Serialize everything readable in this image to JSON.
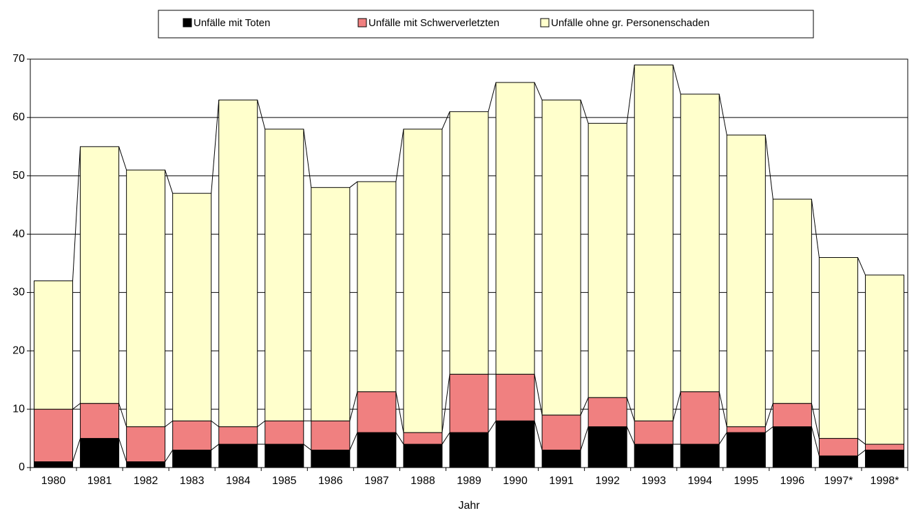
{
  "chart_data": {
    "type": "stacked-bar",
    "x_label": "Jahr",
    "categories": [
      "1980",
      "1981",
      "1982",
      "1983",
      "1984",
      "1985",
      "1986",
      "1987",
      "1988",
      "1989",
      "1990",
      "1991",
      "1992",
      "1993",
      "1994",
      "1995",
      "1996",
      "1997*",
      "1998*"
    ],
    "series": [
      {
        "name": "Unfälle mit Toten",
        "color": "#000000",
        "values": [
          1,
          5,
          1,
          3,
          4,
          4,
          3,
          6,
          4,
          6,
          8,
          3,
          7,
          4,
          4,
          6,
          7,
          2,
          3
        ]
      },
      {
        "name": "Unfälle mit Schwerverletzten",
        "color": "#f08080",
        "values": [
          9,
          6,
          6,
          5,
          3,
          4,
          5,
          7,
          2,
          10,
          8,
          6,
          5,
          4,
          9,
          1,
          4,
          3,
          1
        ]
      },
      {
        "name": "Unfälle ohne gr. Personenschaden",
        "color": "#ffffcc",
        "values": [
          22,
          44,
          44,
          39,
          56,
          50,
          40,
          36,
          52,
          45,
          50,
          54,
          47,
          61,
          51,
          50,
          35,
          31,
          29
        ]
      }
    ],
    "ylim": [
      0,
      70
    ],
    "yticks": [
      0,
      10,
      20,
      30,
      40,
      50,
      60,
      70
    ],
    "grid": true,
    "legend": "top"
  }
}
